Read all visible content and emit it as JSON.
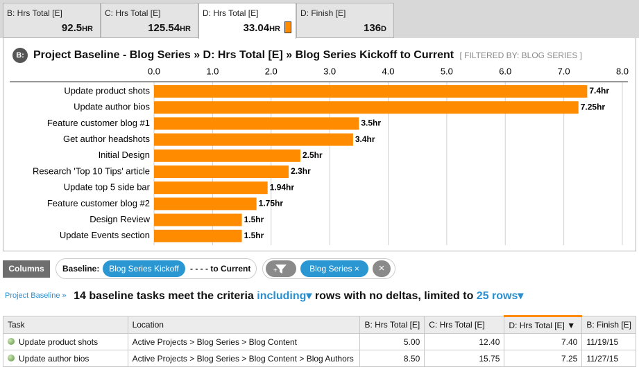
{
  "tabs": [
    {
      "label": "B: Hrs Total [E]",
      "value": "92.5",
      "unit": "HR"
    },
    {
      "label": "C: Hrs Total [E]",
      "value": "125.54",
      "unit": "HR"
    },
    {
      "label": "D: Hrs Total [E]",
      "value": "33.04",
      "unit": "HR"
    },
    {
      "label": "D: Finish [E]",
      "value": "136",
      "unit": "D"
    }
  ],
  "chart_data": {
    "type": "bar",
    "orientation": "horizontal",
    "badge": "B:",
    "title": "Project Baseline - Blog Series » D: Hrs Total [E] » Blog Series Kickoff to Current",
    "subtitle": "[ FILTERED BY: BLOG SERIES ]",
    "categories": [
      "Update product shots",
      "Update author bios",
      "Feature customer blog #1",
      "Get author headshots",
      "Initial Design",
      "Research 'Top 10 Tips' article",
      "Update top 5 side bar",
      "Feature customer blog #2",
      "Design Review",
      "Update Events section"
    ],
    "values": [
      7.4,
      7.25,
      3.5,
      3.4,
      2.5,
      2.3,
      1.94,
      1.75,
      1.5,
      1.5
    ],
    "value_labels": [
      "7.4hr",
      "7.25hr",
      "3.5hr",
      "3.4hr",
      "2.5hr",
      "2.3hr",
      "1.94hr",
      "1.75hr",
      "1.5hr",
      "1.5hr"
    ],
    "color": "#ff8c00",
    "xlim": [
      0,
      8
    ],
    "xticks": [
      {
        "value": 0,
        "label": "0.0"
      },
      {
        "value": 1,
        "label": "1.0"
      },
      {
        "value": 2,
        "label": "2.0"
      },
      {
        "value": 3,
        "label": "3.0"
      },
      {
        "value": 4,
        "label": "4.0"
      },
      {
        "value": 5,
        "label": "5.0"
      },
      {
        "value": 6,
        "label": "6.0"
      },
      {
        "value": 7,
        "label": "7.0"
      },
      {
        "value": 8,
        "label": "8.0"
      }
    ],
    "grid": true
  },
  "toolbar": {
    "columns": "Columns",
    "baseline_label": "Baseline:",
    "baseline": "Blog Series Kickoff",
    "to": "- - - - to Current",
    "filter": "Blog Series ×"
  },
  "summary": {
    "link": "Project Baseline »",
    "text1": "14 baseline tasks meet the criteria",
    "option1": "including▾",
    "text2": "rows with no deltas, limited to",
    "option2": "25 rows▾"
  },
  "table": {
    "headers": [
      "Task",
      "Location",
      "B: Hrs Total [E]",
      "C: Hrs Total [E]",
      "D: Hrs Total [E] ▼",
      "B: Finish [E]"
    ],
    "rows": [
      [
        "Update product shots",
        "Active Projects > Blog Series > Blog Content",
        "5.00",
        "12.40",
        "7.40",
        "11/19/15"
      ],
      [
        "Update author bios",
        "Active Projects > Blog Series > Blog Content > Blog Authors",
        "8.50",
        "15.75",
        "7.25",
        "11/27/15"
      ]
    ]
  }
}
